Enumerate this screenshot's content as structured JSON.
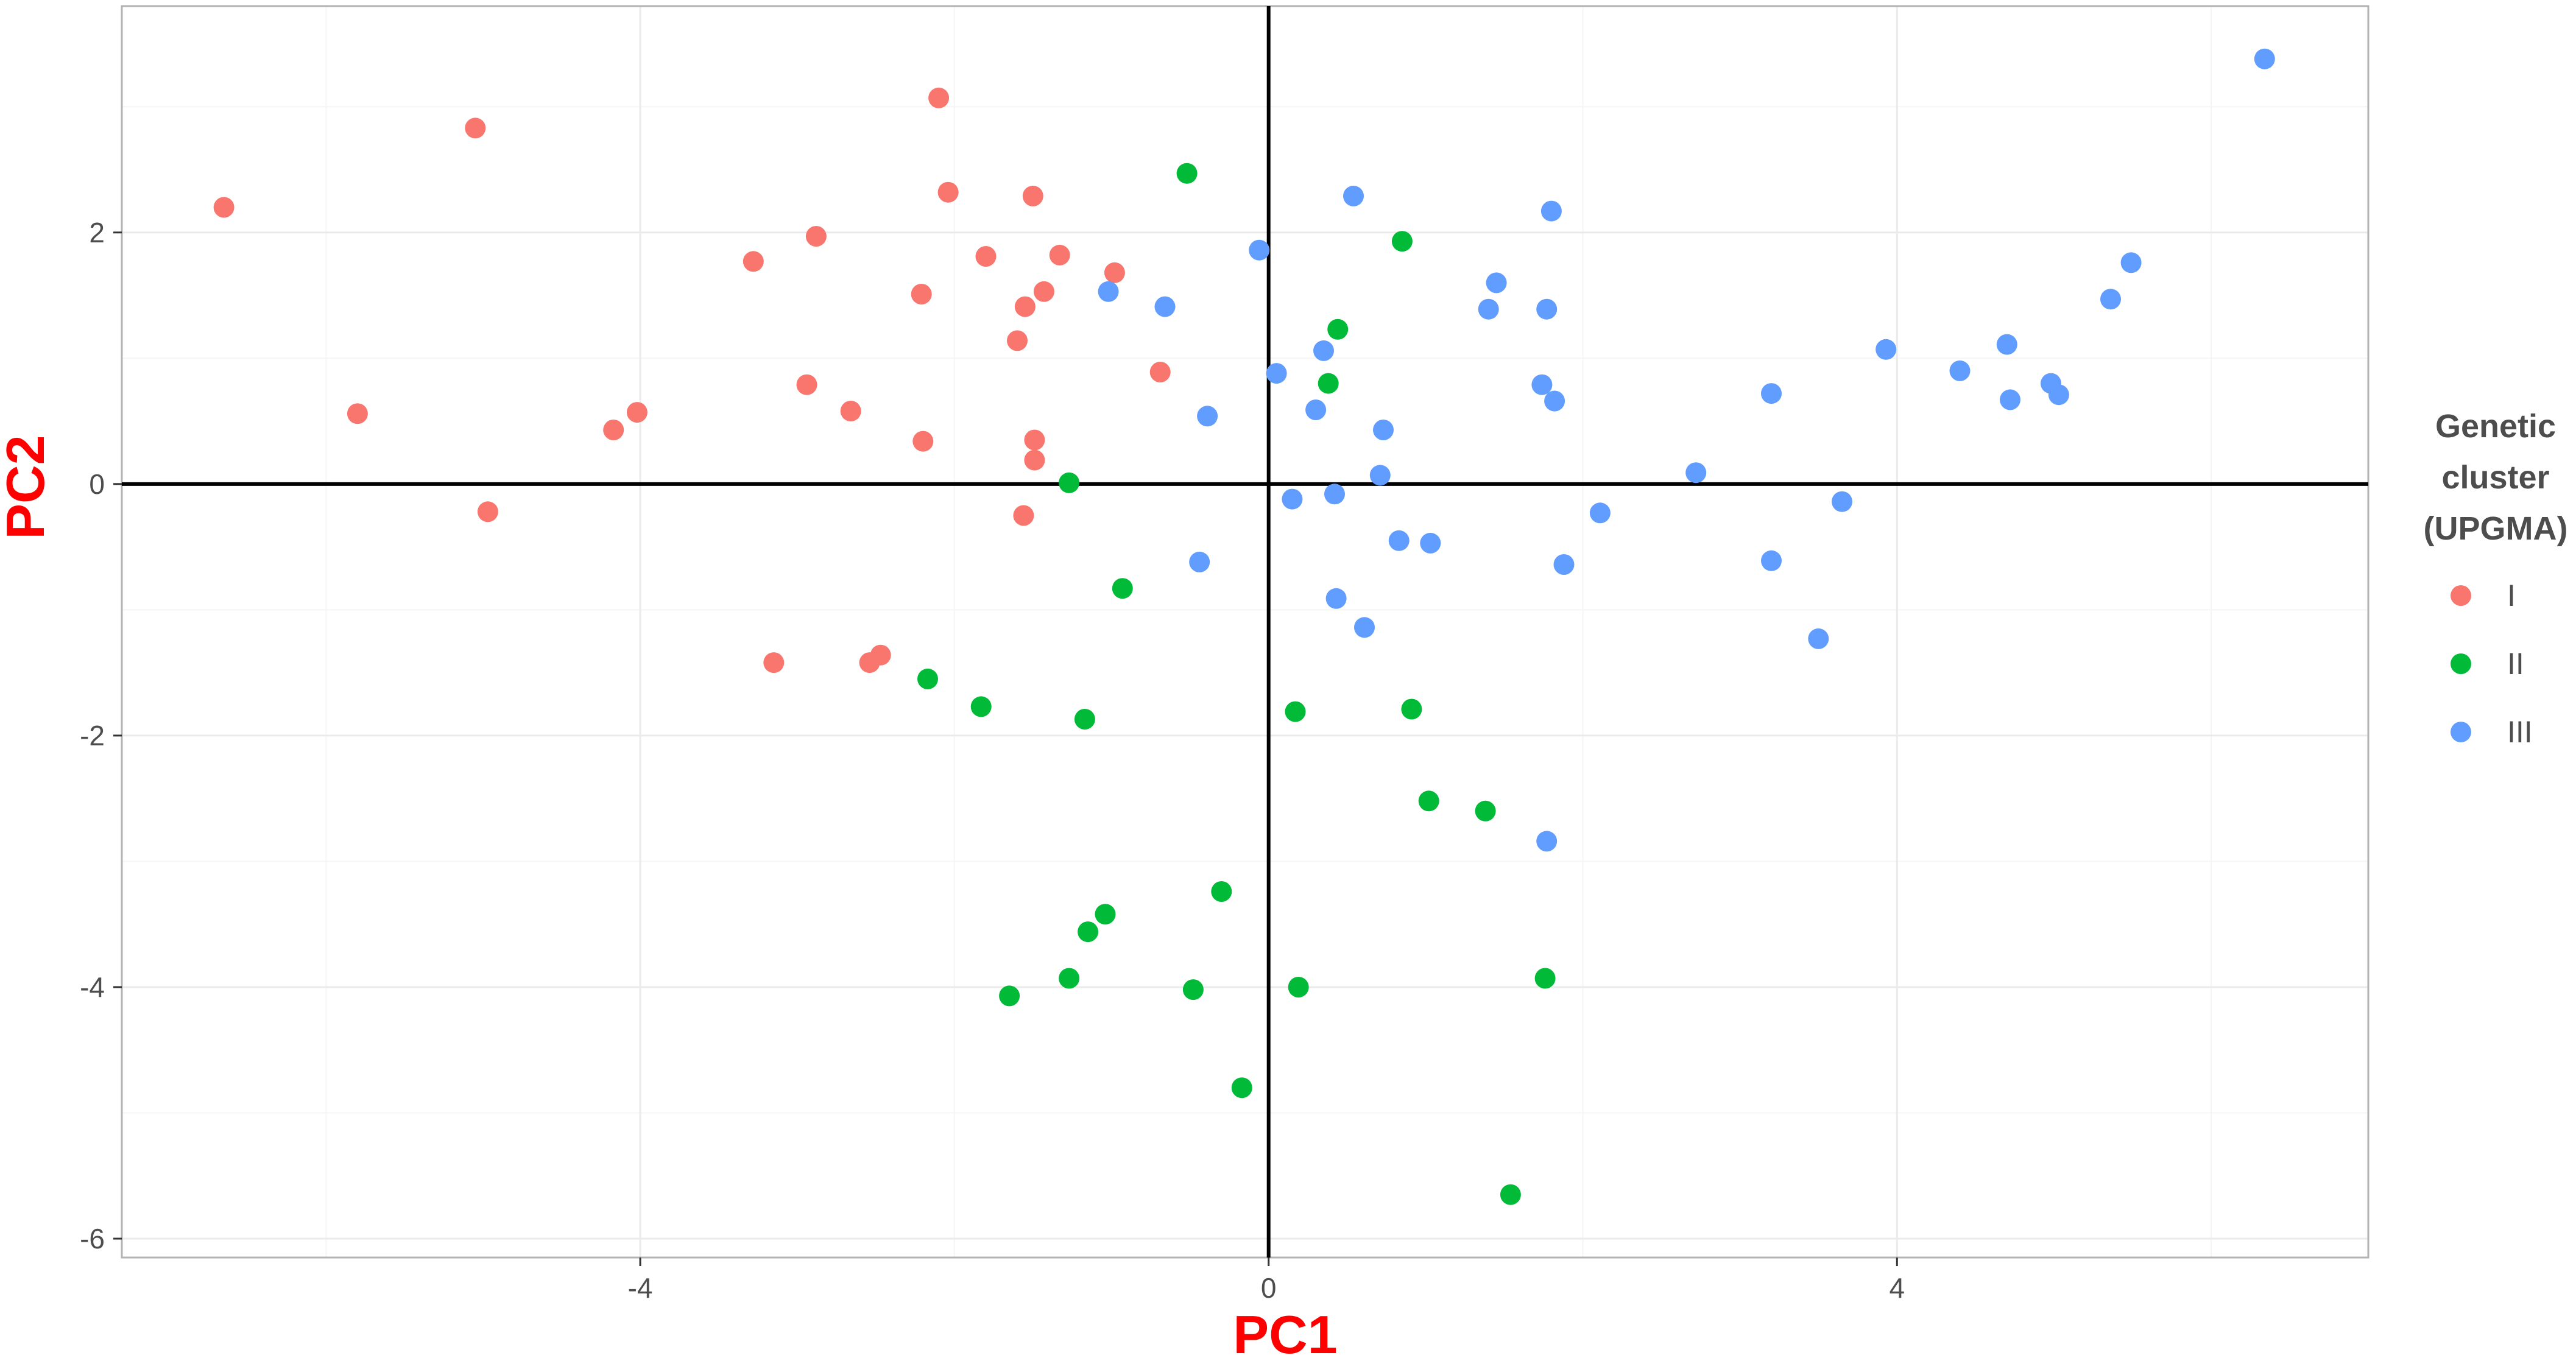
{
  "colors": {
    "cluster_I": "#F8766D",
    "cluster_II": "#00BA38",
    "cluster_III": "#619CFF",
    "axis_title": "#FF0000",
    "grid_major": "#EBEBEB",
    "grid_minor": "#F5F5F5",
    "panel_border": "#B3B3B3"
  },
  "chart_data": {
    "type": "scatter",
    "title": "",
    "xlabel": "PC1",
    "ylabel": "PC2",
    "xlim": [
      -7.3,
      7.0
    ],
    "ylim": [
      -6.15,
      3.8
    ],
    "x_ticks": [
      -4,
      0,
      4
    ],
    "x_tick_labels": [
      "-4",
      "0",
      "4"
    ],
    "y_ticks": [
      -6,
      -4,
      -2,
      0,
      2
    ],
    "y_tick_labels": [
      "-6",
      "-4",
      "-2",
      "0",
      "2"
    ],
    "grid": true,
    "reference_lines": {
      "x": 0,
      "y": 0
    },
    "legend": {
      "title_lines": [
        "Genetic",
        "cluster",
        "(UPGMA)"
      ],
      "position": "right"
    },
    "series": [
      {
        "name": "I",
        "color": "#F8766D",
        "points": [
          [
            -6.65,
            2.2
          ],
          [
            -5.8,
            0.56
          ],
          [
            -5.05,
            2.83
          ],
          [
            -4.97,
            -0.22
          ],
          [
            -4.17,
            0.43
          ],
          [
            -4.02,
            0.57
          ],
          [
            -3.28,
            1.77
          ],
          [
            -3.15,
            -1.42
          ],
          [
            -2.94,
            0.79
          ],
          [
            -2.88,
            1.97
          ],
          [
            -2.66,
            0.58
          ],
          [
            -2.54,
            -1.42
          ],
          [
            -2.47,
            -1.36
          ],
          [
            -2.21,
            1.51
          ],
          [
            -2.2,
            0.34
          ],
          [
            -2.1,
            3.07
          ],
          [
            -2.04,
            2.32
          ],
          [
            -1.8,
            1.81
          ],
          [
            -1.6,
            1.14
          ],
          [
            -1.55,
            1.41
          ],
          [
            -1.56,
            -0.25
          ],
          [
            -1.5,
            2.29
          ],
          [
            -1.49,
            0.35
          ],
          [
            -1.49,
            0.19
          ],
          [
            -1.43,
            1.53
          ],
          [
            -1.33,
            1.82
          ],
          [
            -0.98,
            1.68
          ],
          [
            -0.69,
            0.89
          ]
        ]
      },
      {
        "name": "II",
        "color": "#00BA38",
        "points": [
          [
            -0.52,
            2.47
          ],
          [
            0.85,
            1.93
          ],
          [
            0.44,
            1.23
          ],
          [
            0.38,
            0.8
          ],
          [
            -1.27,
            0.01
          ],
          [
            -0.93,
            -0.83
          ],
          [
            -2.17,
            -1.55
          ],
          [
            -1.83,
            -1.77
          ],
          [
            -1.17,
            -1.87
          ],
          [
            0.17,
            -1.81
          ],
          [
            0.91,
            -1.79
          ],
          [
            1.02,
            -2.52
          ],
          [
            1.38,
            -2.6
          ],
          [
            -0.3,
            -3.24
          ],
          [
            -1.04,
            -3.42
          ],
          [
            -1.15,
            -3.56
          ],
          [
            -1.27,
            -3.93
          ],
          [
            -1.65,
            -4.07
          ],
          [
            -0.48,
            -4.02
          ],
          [
            0.19,
            -4.0
          ],
          [
            1.76,
            -3.93
          ],
          [
            -0.17,
            -4.8
          ],
          [
            1.54,
            -5.65
          ]
        ]
      },
      {
        "name": "III",
        "color": "#619CFF",
        "points": [
          [
            6.34,
            3.38
          ],
          [
            0.54,
            2.29
          ],
          [
            1.8,
            2.17
          ],
          [
            -0.06,
            1.86
          ],
          [
            1.45,
            1.6
          ],
          [
            -1.02,
            1.53
          ],
          [
            -0.66,
            1.41
          ],
          [
            1.4,
            1.39
          ],
          [
            1.77,
            1.39
          ],
          [
            0.35,
            1.06
          ],
          [
            0.05,
            0.88
          ],
          [
            -0.39,
            0.54
          ],
          [
            0.3,
            0.59
          ],
          [
            0.73,
            0.43
          ],
          [
            1.74,
            0.79
          ],
          [
            1.82,
            0.66
          ],
          [
            0.71,
            0.07
          ],
          [
            0.15,
            -0.12
          ],
          [
            0.42,
            -0.08
          ],
          [
            0.83,
            -0.45
          ],
          [
            1.03,
            -0.47
          ],
          [
            2.11,
            -0.23
          ],
          [
            1.88,
            -0.64
          ],
          [
            -0.44,
            -0.62
          ],
          [
            0.43,
            -0.91
          ],
          [
            0.61,
            -1.14
          ],
          [
            2.72,
            0.09
          ],
          [
            3.2,
            0.72
          ],
          [
            3.93,
            1.07
          ],
          [
            3.65,
            -0.14
          ],
          [
            3.2,
            -0.61
          ],
          [
            3.5,
            -1.23
          ],
          [
            4.4,
            0.9
          ],
          [
            4.7,
            1.11
          ],
          [
            4.72,
            0.67
          ],
          [
            4.98,
            0.8
          ],
          [
            5.03,
            0.71
          ],
          [
            5.36,
            1.47
          ],
          [
            5.49,
            1.76
          ],
          [
            1.77,
            -2.84
          ]
        ]
      }
    ]
  }
}
